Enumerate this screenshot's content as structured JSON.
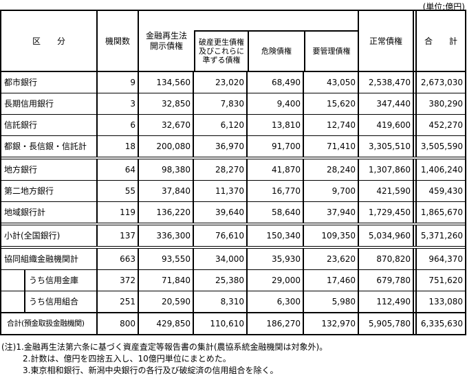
{
  "unit_label": "(単位:億円)",
  "table": {
    "headers": {
      "category": "区　　分",
      "institution_count": "機関数",
      "disclosed_claims": "金融再生法\n開示債権",
      "bankruptcy_claims": "破産更生債権\n及びこれらに\n準ずる債権",
      "doubtful_claims": "危険債権",
      "special_attention_claims": "要管理債権",
      "normal_claims": "正常債権",
      "total": "合　　計"
    },
    "rows": [
      {
        "label": "都市銀行",
        "values": [
          "9",
          "134,560",
          "23,020",
          "68,490",
          "43,050",
          "2,538,470",
          "2,673,030"
        ]
      },
      {
        "label": "長期信用銀行",
        "values": [
          "3",
          "32,850",
          "7,830",
          "9,400",
          "15,620",
          "347,440",
          "380,290"
        ]
      },
      {
        "label": "信託銀行",
        "values": [
          "6",
          "32,670",
          "6,120",
          "13,810",
          "12,740",
          "419,600",
          "452,270"
        ]
      },
      {
        "label": "都銀・長信銀・信託計",
        "separator": "double",
        "values": [
          "18",
          "200,080",
          "36,970",
          "91,700",
          "71,410",
          "3,305,510",
          "3,505,590"
        ]
      },
      {
        "label": "地方銀行",
        "values": [
          "64",
          "98,380",
          "28,270",
          "41,870",
          "28,240",
          "1,307,860",
          "1,406,240"
        ]
      },
      {
        "label": "第二地方銀行",
        "values": [
          "55",
          "37,840",
          "11,370",
          "16,770",
          "9,700",
          "421,590",
          "459,430"
        ]
      },
      {
        "label": "地域銀行計",
        "separator": "double",
        "values": [
          "119",
          "136,220",
          "39,640",
          "58,640",
          "37,940",
          "1,729,450",
          "1,865,670"
        ]
      },
      {
        "label": "小計(全国銀行)",
        "separator": "double",
        "values": [
          "137",
          "336,300",
          "76,610",
          "150,340",
          "109,350",
          "5,034,960",
          "5,371,260"
        ]
      },
      {
        "label": "協同組織金融機関計",
        "values": [
          "663",
          "93,550",
          "34,000",
          "35,930",
          "23,620",
          "870,820",
          "964,370"
        ]
      },
      {
        "label": "うち信用金庫",
        "indent": true,
        "values": [
          "372",
          "71,840",
          "25,380",
          "29,000",
          "17,460",
          "679,780",
          "751,620"
        ]
      },
      {
        "label": "うち信用組合",
        "indent": true,
        "separator": "thick",
        "values": [
          "251",
          "20,590",
          "8,310",
          "6,300",
          "5,980",
          "112,490",
          "133,080"
        ]
      },
      {
        "label": "合計(預金取扱金融機関)",
        "small": true,
        "values": [
          "800",
          "429,850",
          "110,610",
          "186,270",
          "132,970",
          "5,905,780",
          "6,335,630"
        ]
      }
    ]
  },
  "notes": [
    "(注)1.金融再生法第六条に基づく資産査定等報告書の集計(農協系統金融機関は対象外)。",
    "2.計数は、億円を四捨五入し、10億円単位にまとめた。",
    "3.東京相和銀行、新潟中央銀行の各行及び破綻済の信用組合を除く。"
  ]
}
